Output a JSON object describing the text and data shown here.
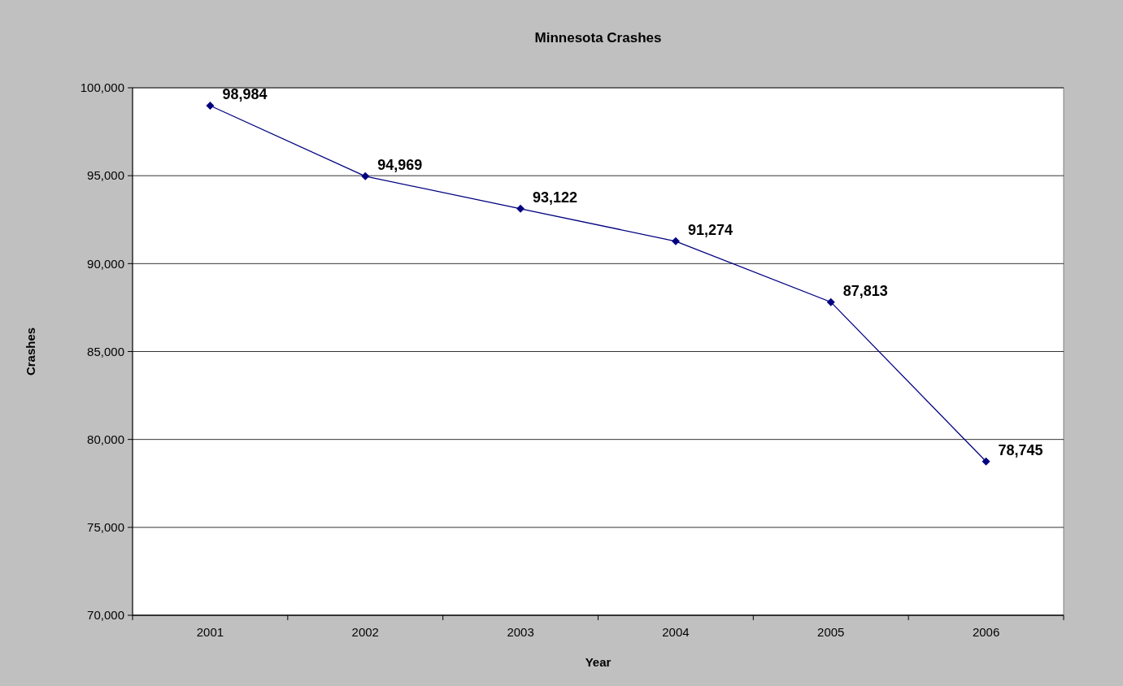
{
  "chart_data": {
    "type": "line",
    "title": "Minnesota Crashes",
    "xlabel": "Year",
    "ylabel": "Crashes",
    "categories": [
      "2001",
      "2002",
      "2003",
      "2004",
      "2005",
      "2006"
    ],
    "series": [
      {
        "color": "#000080",
        "values": [
          98984,
          94969,
          93122,
          91274,
          87813,
          78745
        ],
        "value_labels": [
          "98,984",
          "94,969",
          "93,122",
          "91,274",
          "87,813",
          "78,745"
        ]
      }
    ],
    "ylim": [
      70000,
      100000
    ],
    "yticks": [
      {
        "value": 70000,
        "label": "70,000"
      },
      {
        "value": 75000,
        "label": "75,000"
      },
      {
        "value": 80000,
        "label": "80,000"
      },
      {
        "value": 85000,
        "label": "85,000"
      },
      {
        "value": 90000,
        "label": "90,000"
      },
      {
        "value": 95000,
        "label": "95,000"
      },
      {
        "value": 100000,
        "label": "100,000"
      }
    ],
    "grid": "y",
    "marker": "diamond",
    "line_style": "solid"
  }
}
